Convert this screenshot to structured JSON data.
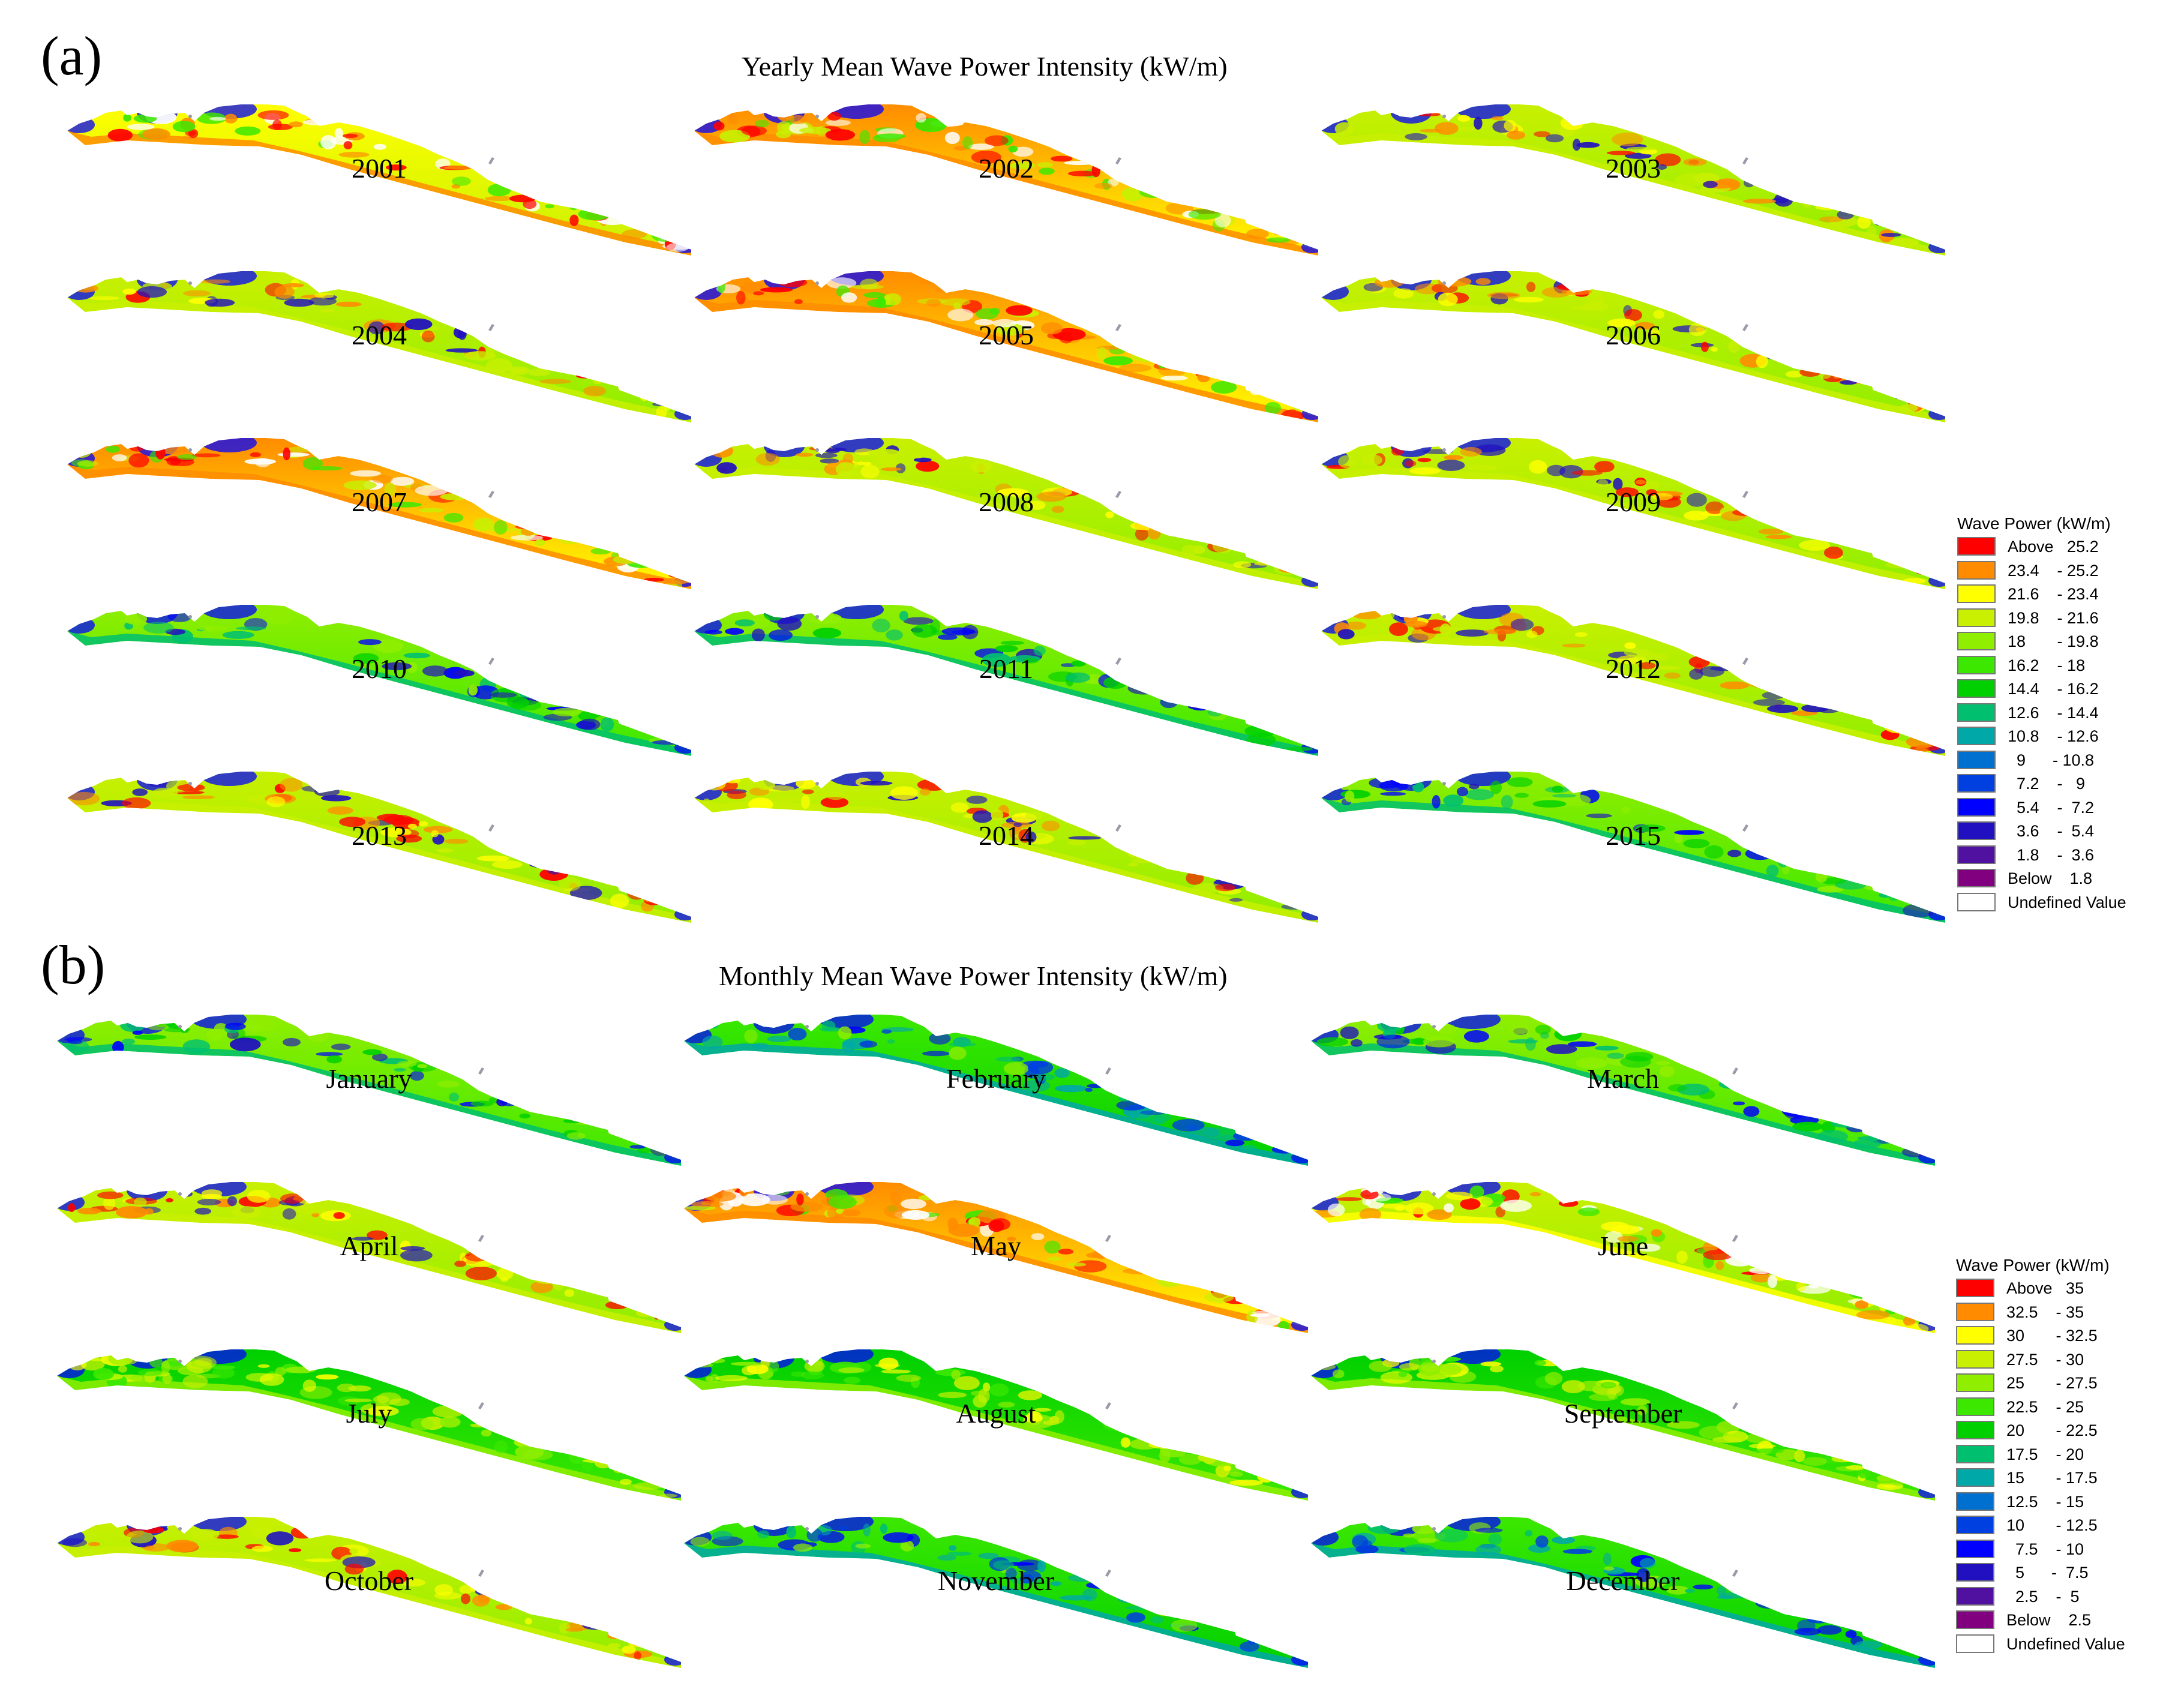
{
  "panels": [
    {
      "letter": "(a)",
      "title": "Yearly Mean Wave Power Intensity (kW/m)",
      "map_labels": [
        "2001",
        "2002",
        "2003",
        "2004",
        "2005",
        "2006",
        "2007",
        "2008",
        "2009",
        "2010",
        "2011",
        "2012",
        "2013",
        "2014",
        "2015"
      ],
      "intensity_class": [
        "med-high",
        "high",
        "medium",
        "medium",
        "high",
        "medium",
        "high",
        "medium",
        "medium",
        "low",
        "low",
        "medium",
        "medium",
        "medium",
        "low"
      ],
      "legend": {
        "title": "Wave Power (kW/m)",
        "classes": [
          {
            "label": "Above   25.2",
            "color": "#ff0000"
          },
          {
            "label": "23.4    - 25.2",
            "color": "#ff8c00"
          },
          {
            "label": "21.6    - 23.4",
            "color": "#ffff00"
          },
          {
            "label": "19.8    - 21.6",
            "color": "#c8f000"
          },
          {
            "label": "18       - 19.8",
            "color": "#90ee00"
          },
          {
            "label": "16.2    - 18",
            "color": "#3ce800"
          },
          {
            "label": "14.4    - 16.2",
            "color": "#00d000"
          },
          {
            "label": "12.6    - 14.4",
            "color": "#00c070"
          },
          {
            "label": "10.8    - 12.6",
            "color": "#00a8a8"
          },
          {
            "label": "  9      - 10.8",
            "color": "#0070d0"
          },
          {
            "label": "  7.2    -   9",
            "color": "#0040e0"
          },
          {
            "label": "  5.4    -  7.2",
            "color": "#0000ff"
          },
          {
            "label": "  3.6    -  5.4",
            "color": "#2010c0"
          },
          {
            "label": "  1.8    -  3.6",
            "color": "#5010a0"
          },
          {
            "label": "Below    1.8",
            "color": "#800080"
          },
          {
            "label": "Undefined Value",
            "color": "#ffffff"
          }
        ]
      }
    },
    {
      "letter": "(b)",
      "title": "Monthly Mean Wave Power Intensity (kW/m)",
      "map_labels": [
        "January",
        "February",
        "March",
        "April",
        "May",
        "June",
        "July",
        "August",
        "September",
        "October",
        "November",
        "December"
      ],
      "intensity_class": [
        "low",
        "very-low",
        "low",
        "medium",
        "high",
        "very-high",
        "extreme",
        "extreme",
        "extreme",
        "medium",
        "very-low",
        "very-low"
      ],
      "legend": {
        "title": "Wave Power (kW/m)",
        "classes": [
          {
            "label": "Above   35",
            "color": "#ff0000"
          },
          {
            "label": "32.5    - 35",
            "color": "#ff8c00"
          },
          {
            "label": "30       - 32.5",
            "color": "#ffff00"
          },
          {
            "label": "27.5    - 30",
            "color": "#c8f000"
          },
          {
            "label": "25       - 27.5",
            "color": "#90ee00"
          },
          {
            "label": "22.5    - 25",
            "color": "#3ce800"
          },
          {
            "label": "20       - 22.5",
            "color": "#00d000"
          },
          {
            "label": "17.5    - 20",
            "color": "#00c070"
          },
          {
            "label": "15       - 17.5",
            "color": "#00a8a8"
          },
          {
            "label": "12.5    - 15",
            "color": "#0070d0"
          },
          {
            "label": "10       - 12.5",
            "color": "#0040e0"
          },
          {
            "label": "  7.5    - 10",
            "color": "#0000ff"
          },
          {
            "label": "  5      -  7.5",
            "color": "#2010c0"
          },
          {
            "label": "  2.5    -  5",
            "color": "#5010a0"
          },
          {
            "label": "Below    2.5",
            "color": "#800080"
          },
          {
            "label": "Undefined Value",
            "color": "#ffffff"
          }
        ]
      }
    }
  ]
}
